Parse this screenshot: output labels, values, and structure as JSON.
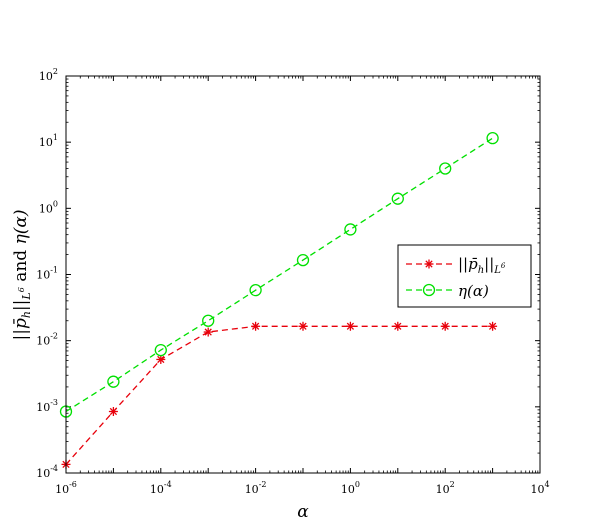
{
  "chart_data": {
    "type": "line",
    "xscale": "log",
    "yscale": "log",
    "xlabel": "α",
    "ylabel": "||p̄_h||_{L^6} and η(α)",
    "xlim": [
      1e-06,
      10000.0
    ],
    "ylim": [
      0.0001,
      100
    ],
    "grid": false,
    "legend_position": "right",
    "x_ticks": [
      {
        "mant": "10",
        "exp": "-6"
      },
      {
        "mant": "10",
        "exp": "-4"
      },
      {
        "mant": "10",
        "exp": "-2"
      },
      {
        "mant": "10",
        "exp": "0"
      },
      {
        "mant": "10",
        "exp": "2"
      },
      {
        "mant": "10",
        "exp": "4"
      }
    ],
    "y_ticks": [
      {
        "mant": "10",
        "exp": "-4"
      },
      {
        "mant": "10",
        "exp": "-3"
      },
      {
        "mant": "10",
        "exp": "-2"
      },
      {
        "mant": "10",
        "exp": "-1"
      },
      {
        "mant": "10",
        "exp": "0"
      },
      {
        "mant": "10",
        "exp": "1"
      },
      {
        "mant": "10",
        "exp": "2"
      }
    ],
    "x": [
      1e-06,
      1e-05,
      0.0001,
      0.001,
      0.01,
      0.1,
      1,
      10,
      100,
      1000
    ],
    "series": [
      {
        "name": "||p̄_h||_{L^6}",
        "color": "#e8000b",
        "marker": "asterisk",
        "line": "dashed",
        "values": [
          0.000135,
          0.00085,
          0.0052,
          0.0135,
          0.0165,
          0.0165,
          0.0165,
          0.0165,
          0.0165,
          0.0165
        ]
      },
      {
        "name": "η(α)",
        "color": "#00e000",
        "marker": "circle",
        "line": "dashed",
        "values": [
          0.00085,
          0.0024,
          0.0072,
          0.02,
          0.058,
          0.165,
          0.48,
          1.4,
          4.0,
          11.5
        ]
      }
    ]
  }
}
